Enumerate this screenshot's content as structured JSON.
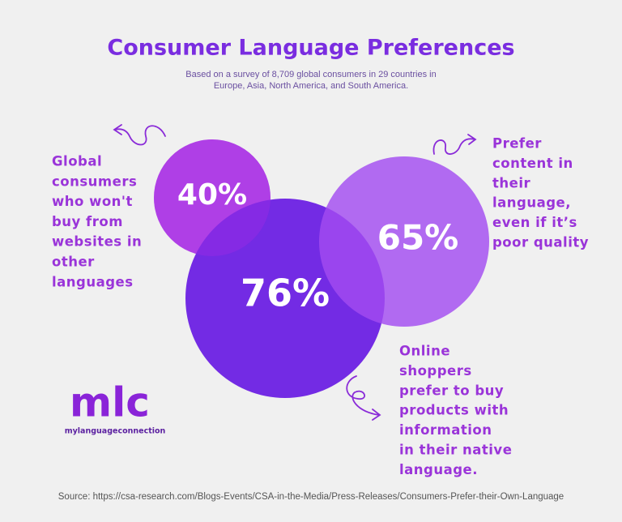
{
  "header": {
    "title": "Consumer Language Preferences",
    "subtitle": [
      "Based on a survey of 8,709 global consumers in 29 countries in",
      "Europe, Asia, North America, and South America."
    ]
  },
  "stats": [
    {
      "value": "40%",
      "label": [
        "Global",
        "consumers",
        "who won't",
        "buy from",
        "websites in",
        "other",
        "languages"
      ]
    },
    {
      "value": "65%",
      "label": [
        "Prefer",
        "content in",
        "their",
        "language,",
        "even if it’s",
        "poor quality"
      ]
    },
    {
      "value": "76%",
      "label": [
        "Online",
        "shoppers",
        "prefer to buy",
        "products with",
        "information",
        "in their native",
        "language."
      ]
    }
  ],
  "logo": {
    "mark": "mlc",
    "name": "mylanguageconnection"
  },
  "source": "Source: https://csa-research.com/Blogs-Events/CSA-in-the-Media/Press-Releases/Consumers-Prefer-their-Own-Language"
}
